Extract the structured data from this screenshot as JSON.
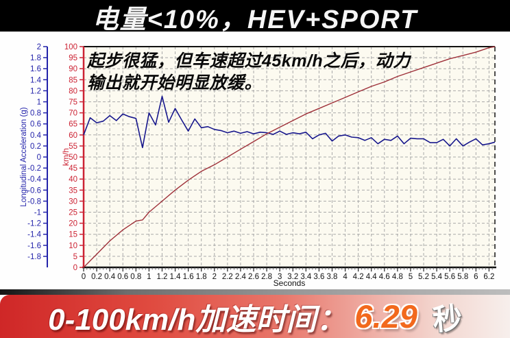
{
  "header": {
    "title": "电量<10%，HEV+SPORT"
  },
  "chart": {
    "annotation": {
      "line1": "起步很猛，但车速超过45km/h之后，动力",
      "line2": "输出就开始明显放缓。"
    }
  },
  "chart_data": {
    "type": "line",
    "title": "电量<10%，HEV+SPORT",
    "grid": true,
    "legend": false,
    "x_axis": {
      "label": "Seconds",
      "range": [
        0,
        6.29
      ],
      "tick_labels": [
        "0",
        "0.2",
        "0.4",
        "0.6",
        "0.8",
        "1",
        "1.2",
        "1.4",
        "1.6",
        "1.8",
        "2",
        "2.2",
        "2.4",
        "2.6",
        "2.8",
        "3",
        "3.2",
        "3.4",
        "3.6",
        "3.8",
        "4",
        "4.2",
        "4.4",
        "4.6",
        "4.8",
        "5",
        "5.2",
        "5.4",
        "5.6",
        "5.8",
        "6",
        "6.2"
      ]
    },
    "y_axis_acceleration": {
      "label": "Longitudinal Acceleration (g)",
      "range": [
        -2,
        2
      ],
      "color": "#2222aa",
      "tick_labels": [
        "2",
        "1.8",
        "1.6",
        "1.4",
        "1.2",
        "1",
        "0.8",
        "0.6",
        "0.4",
        "0.2",
        "0",
        "-0.2",
        "-0.4",
        "-0.6",
        "-0.8",
        "-1",
        "-1.2",
        "-1.4",
        "-1.6",
        "-1.8"
      ]
    },
    "y_axis_speed": {
      "label": "km/h",
      "range": [
        0,
        100
      ],
      "color": "#cc2233",
      "tick_labels": [
        "100",
        "95",
        "90",
        "85",
        "80",
        "75",
        "70",
        "65",
        "60",
        "55",
        "50",
        "45",
        "40",
        "35",
        "30",
        "25",
        "20",
        "15",
        "10",
        "5",
        "0"
      ]
    },
    "series": [
      {
        "name": "longitudinal-acceleration",
        "axis": "g",
        "color": "#16168c",
        "points": [
          [
            0,
            0.4
          ],
          [
            0.1,
            0.71
          ],
          [
            0.2,
            0.62
          ],
          [
            0.3,
            0.65
          ],
          [
            0.4,
            0.75
          ],
          [
            0.5,
            0.66
          ],
          [
            0.6,
            0.78
          ],
          [
            0.7,
            0.73
          ],
          [
            0.8,
            0.7
          ],
          [
            0.9,
            0.17
          ],
          [
            1,
            0.8
          ],
          [
            1.1,
            0.58
          ],
          [
            1.2,
            1.1
          ],
          [
            1.3,
            0.63
          ],
          [
            1.4,
            0.88
          ],
          [
            1.5,
            0.67
          ],
          [
            1.6,
            0.47
          ],
          [
            1.7,
            0.69
          ],
          [
            1.8,
            0.53
          ],
          [
            1.9,
            0.55
          ],
          [
            2,
            0.5
          ],
          [
            2.1,
            0.48
          ],
          [
            2.2,
            0.44
          ],
          [
            2.3,
            0.47
          ],
          [
            2.4,
            0.43
          ],
          [
            2.5,
            0.46
          ],
          [
            2.6,
            0.42
          ],
          [
            2.7,
            0.45
          ],
          [
            2.8,
            0.44
          ],
          [
            2.9,
            0.41
          ],
          [
            3,
            0.47
          ],
          [
            3.1,
            0.41
          ],
          [
            3.2,
            0.44
          ],
          [
            3.3,
            0.42
          ],
          [
            3.4,
            0.45
          ],
          [
            3.5,
            0.33
          ],
          [
            3.6,
            0.4
          ],
          [
            3.7,
            0.43
          ],
          [
            3.8,
            0.29
          ],
          [
            3.9,
            0.38
          ],
          [
            4,
            0.4
          ],
          [
            4.1,
            0.36
          ],
          [
            4.2,
            0.35
          ],
          [
            4.3,
            0.3
          ],
          [
            4.4,
            0.35
          ],
          [
            4.5,
            0.24
          ],
          [
            4.6,
            0.32
          ],
          [
            4.7,
            0.3
          ],
          [
            4.8,
            0.38
          ],
          [
            4.9,
            0.24
          ],
          [
            5,
            0.34
          ],
          [
            5.1,
            0.33
          ],
          [
            5.2,
            0.33
          ],
          [
            5.3,
            0.26
          ],
          [
            5.4,
            0.26
          ],
          [
            5.5,
            0.32
          ],
          [
            5.6,
            0.2
          ],
          [
            5.7,
            0.33
          ],
          [
            5.8,
            0.2
          ],
          [
            5.9,
            0.27
          ],
          [
            6,
            0.33
          ],
          [
            6.1,
            0.22
          ],
          [
            6.2,
            0.24
          ],
          [
            6.29,
            0.27
          ]
        ]
      },
      {
        "name": "vehicle-speed",
        "axis": "kmh",
        "color": "#9e2f38",
        "points": [
          [
            0,
            0
          ],
          [
            0.2,
            6
          ],
          [
            0.4,
            12
          ],
          [
            0.6,
            17
          ],
          [
            0.8,
            21
          ],
          [
            0.9,
            21.5
          ],
          [
            1,
            25
          ],
          [
            1.2,
            30
          ],
          [
            1.4,
            35
          ],
          [
            1.6,
            39.5
          ],
          [
            1.8,
            43.5
          ],
          [
            2,
            46.5
          ],
          [
            2.2,
            50
          ],
          [
            2.4,
            53.5
          ],
          [
            2.6,
            57
          ],
          [
            2.8,
            60.5
          ],
          [
            3,
            63.5
          ],
          [
            3.2,
            66.5
          ],
          [
            3.4,
            69.5
          ],
          [
            3.6,
            72
          ],
          [
            3.8,
            74.5
          ],
          [
            4,
            77
          ],
          [
            4.2,
            79.5
          ],
          [
            4.4,
            82
          ],
          [
            4.6,
            84
          ],
          [
            4.8,
            86.5
          ],
          [
            5,
            88.5
          ],
          [
            5.2,
            90.5
          ],
          [
            5.4,
            92.5
          ],
          [
            5.6,
            94.5
          ],
          [
            5.8,
            96
          ],
          [
            6,
            97.5
          ],
          [
            6.2,
            99.5
          ],
          [
            6.29,
            100
          ]
        ]
      }
    ]
  },
  "footer": {
    "label": "0-100km/h加速时间：",
    "value": "6.29",
    "unit": "秒",
    "value_color": "#f2691d"
  }
}
